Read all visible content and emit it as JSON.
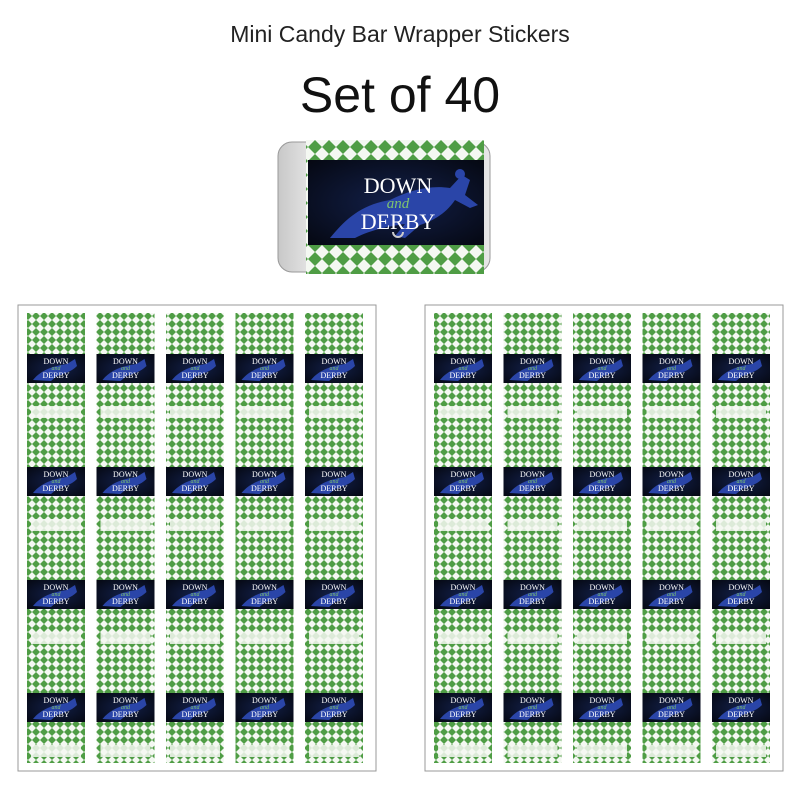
{
  "header": {
    "title": "Mini Candy Bar Wrapper Stickers",
    "subtitle": "Set of 40"
  },
  "label": {
    "line1": "DOWN",
    "line2": "and",
    "line3": "DERBY"
  }
}
